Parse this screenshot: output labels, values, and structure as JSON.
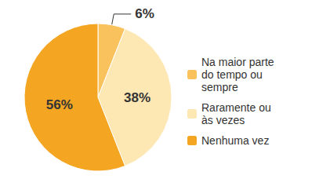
{
  "chart_data": {
    "type": "pie",
    "categories": [
      "Na maior parte do tempo ou sempre",
      "Raramente ou às vezes",
      "Nenhuma vez"
    ],
    "values": [
      6,
      38,
      56
    ],
    "value_labels": [
      "6%",
      "38%",
      "56%"
    ],
    "colors": [
      "#f9c25c",
      "#fde7b3",
      "#f4a622"
    ],
    "data_labels": true,
    "legend": "right"
  }
}
